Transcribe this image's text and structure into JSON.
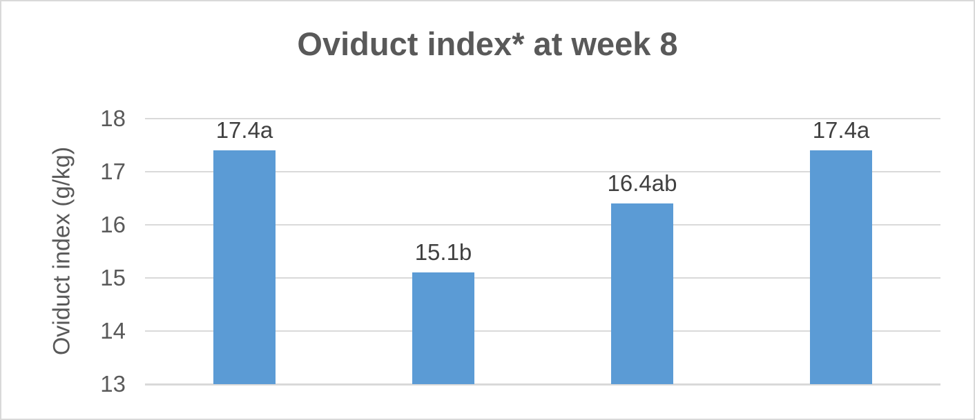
{
  "chart_data": {
    "type": "bar",
    "title": "Oviduct index* at week 8",
    "xlabel": "",
    "ylabel": "Oviduct index (g/kg)",
    "categories": [
      "",
      "",
      "",
      ""
    ],
    "values": [
      17.4,
      15.1,
      16.4,
      17.4
    ],
    "data_labels": [
      "17.4a",
      "15.1b",
      "16.4ab",
      "17.4a"
    ],
    "ylim": [
      13,
      18
    ],
    "yticks": [
      18,
      17,
      16,
      15,
      14,
      13
    ],
    "grid": true,
    "legend_position": "none",
    "x_axis_labels_visible": false
  },
  "colors": {
    "bar": "#5B9BD5",
    "title": "#595959",
    "axis_text": "#595959",
    "data_label": "#404040",
    "gridline": "#D9D9D9",
    "baseline": "#D9D9D9",
    "border": "#D9D9D9",
    "background": "#FFFFFF"
  }
}
